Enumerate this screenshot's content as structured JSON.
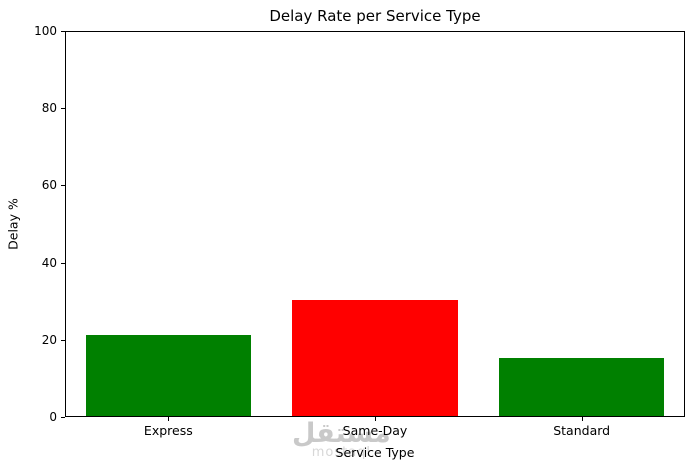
{
  "chart_data": {
    "type": "bar",
    "title": "Delay Rate per Service Type",
    "xlabel": "Service Type",
    "ylabel": "Delay %",
    "categories": [
      "Express",
      "Same-Day",
      "Standard"
    ],
    "values": [
      21,
      30,
      15
    ],
    "bar_colors": [
      "#008000",
      "#ff0000",
      "#008000"
    ],
    "ylim": [
      0,
      100
    ],
    "yticks": [
      0,
      20,
      40,
      60,
      80,
      100
    ],
    "grid": false,
    "legend_position": "none",
    "axis_color": "#000000",
    "background_color": "#ffffff"
  },
  "watermark": {
    "arabic_text": "مستقل",
    "latin_text": "mostaql",
    "arabic_color": "#c9c9c9",
    "latin_color": "#d7d7d7"
  }
}
